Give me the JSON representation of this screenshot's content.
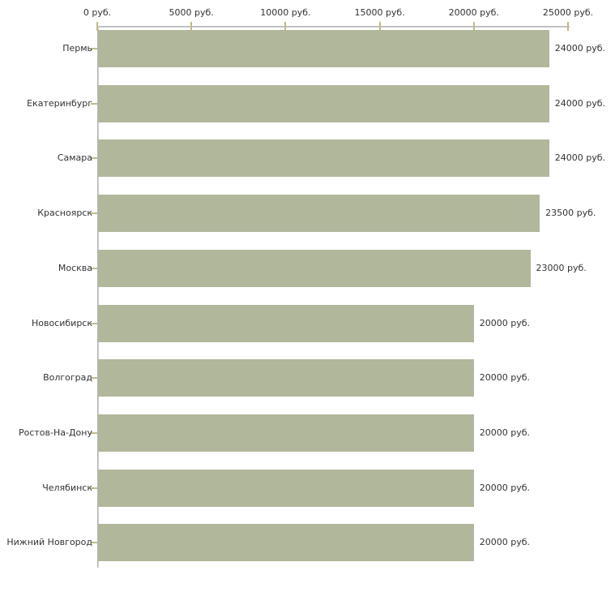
{
  "chart_data": {
    "type": "bar",
    "orientation": "horizontal",
    "unit": "руб.",
    "categories": [
      "Пермь",
      "Екатеринбург",
      "Самара",
      "Красноярск",
      "Москва",
      "Новосибирск",
      "Волгоград",
      "Ростов-На-Дону",
      "Челябинск",
      "Нижний Новгород"
    ],
    "values": [
      24000,
      24000,
      24000,
      23500,
      23000,
      20000,
      20000,
      20000,
      20000,
      20000
    ],
    "value_labels": [
      "24000 руб.",
      "24000 руб.",
      "24000 руб.",
      "23500 руб.",
      "23000 руб.",
      "20000 руб.",
      "20000 руб.",
      "20000 руб.",
      "20000 руб.",
      "20000 руб."
    ],
    "x_axis": {
      "position": "top",
      "min": 0,
      "max": 25000,
      "tick_values": [
        0,
        5000,
        10000,
        15000,
        20000,
        25000
      ],
      "tick_labels": [
        "0 руб.",
        "5000 руб.",
        "10000 руб.",
        "15000 руб.",
        "20000 руб.",
        "25000 руб."
      ]
    },
    "colors": {
      "bar": "#b0b79b",
      "axis_tick": "#c1ba8b",
      "axis_line": "#c2c2c2",
      "text": "#333333",
      "background": "#ffffff"
    },
    "grid": false,
    "legend": false
  }
}
